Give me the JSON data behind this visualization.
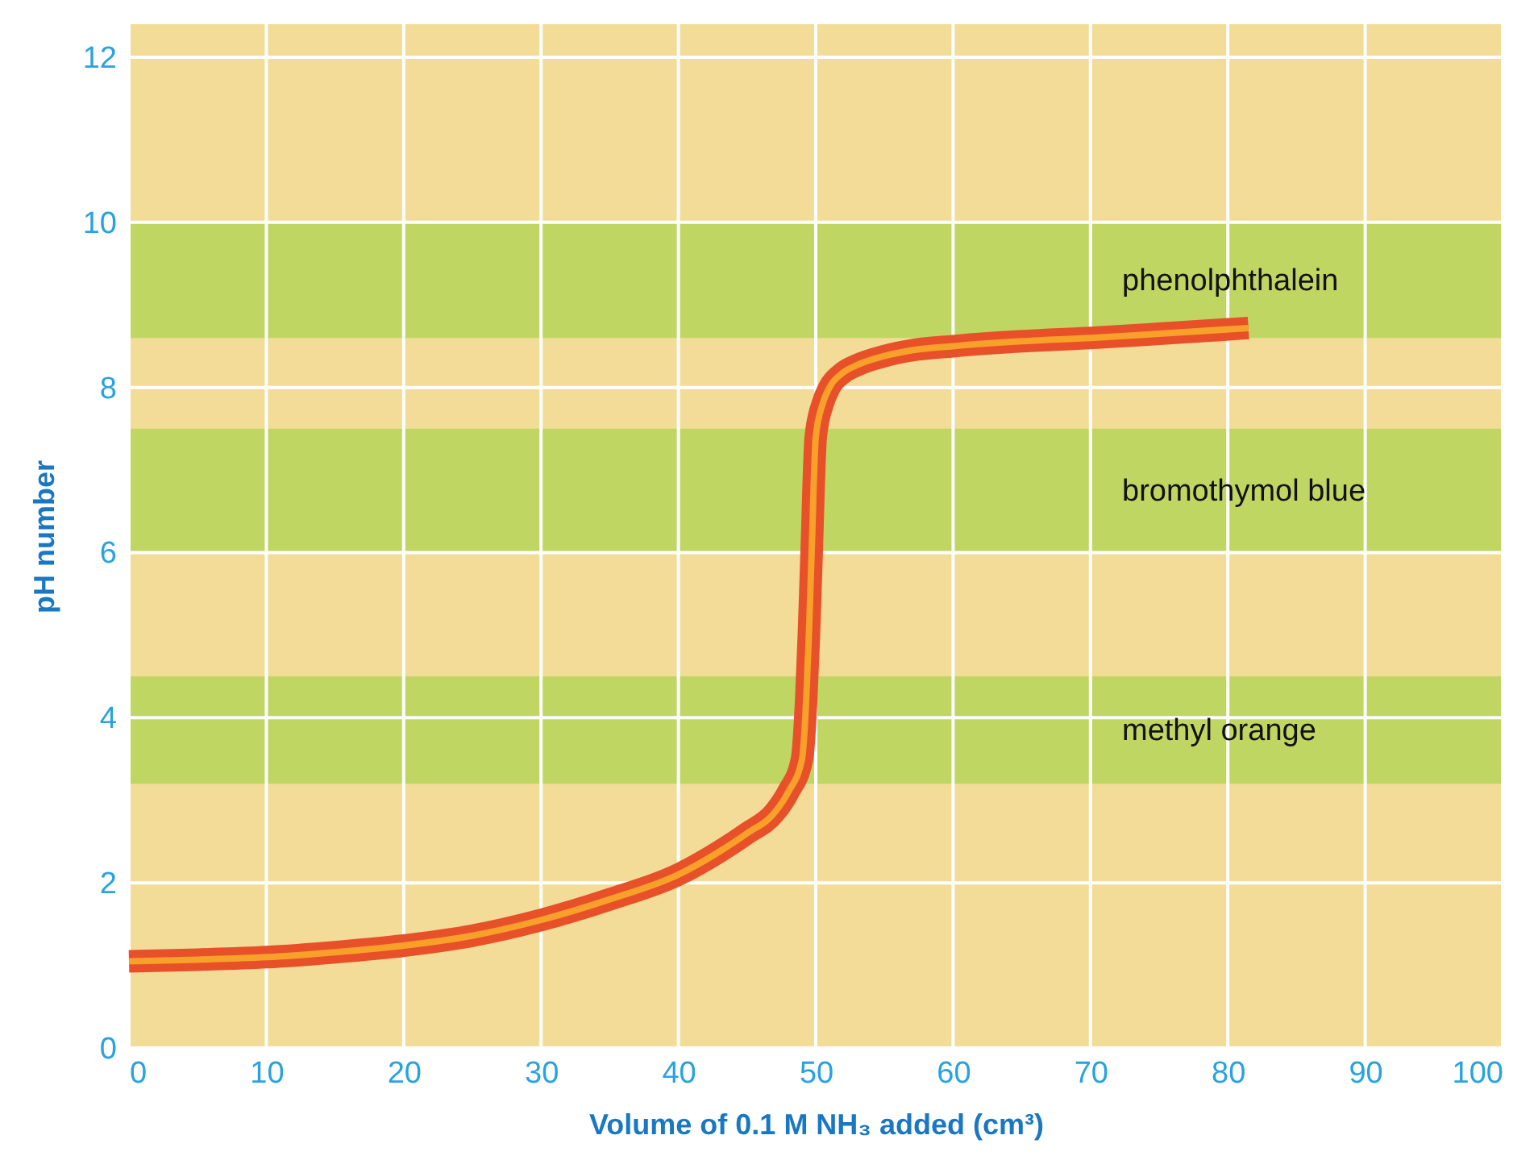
{
  "chart_data": {
    "type": "line",
    "xlabel": "Volume of 0.1 M NH₃ added (cm³)",
    "ylabel": "pH number",
    "x": [
      0,
      5,
      10,
      15,
      20,
      25,
      30,
      35,
      40,
      43,
      45,
      47,
      48,
      49,
      49.3,
      49.5,
      49.7,
      50,
      50.5,
      51,
      52,
      53,
      55,
      57,
      60,
      65,
      70,
      75,
      81.5
    ],
    "series": [
      {
        "color": "#e8502a",
        "values": [
          1.05,
          1.07,
          1.1,
          1.16,
          1.24,
          1.36,
          1.55,
          1.8,
          2.1,
          2.38,
          2.6,
          2.85,
          3.1,
          3.5,
          4.2,
          5.0,
          6.0,
          7.4,
          7.8,
          8.0,
          8.18,
          8.27,
          8.38,
          8.45,
          8.5,
          8.56,
          8.6,
          8.65,
          8.72
        ]
      }
    ],
    "xlim": [
      0,
      100
    ],
    "xticks": [
      0,
      10,
      20,
      30,
      40,
      50,
      60,
      70,
      80,
      90,
      100
    ],
    "ylim": [
      0,
      12.4
    ],
    "yticks": [
      0,
      2,
      4,
      6,
      8,
      10,
      12
    ],
    "grid": true,
    "line_style": "solid",
    "marker": "none",
    "bands": [
      {
        "axis": "y",
        "from": 8.6,
        "to": 10,
        "label": "phenolphthalein",
        "color": "#bfd762"
      },
      {
        "axis": "y",
        "from": 6.0,
        "to": 7.5,
        "label": "bromothymol blue",
        "color": "#bfd762"
      },
      {
        "axis": "y",
        "from": 3.2,
        "to": 4.5,
        "label": "methyl orange",
        "color": "#bfd762"
      }
    ]
  }
}
